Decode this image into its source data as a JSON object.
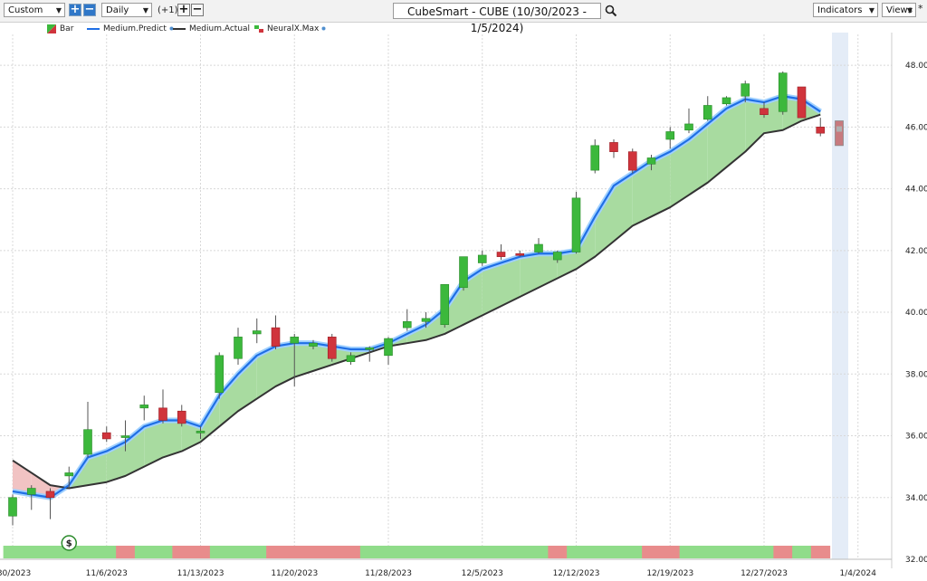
{
  "toolbar": {
    "period_select": "Custom",
    "interval_select": "Daily",
    "offset_label": "(+1)",
    "chart_title": "CubeSmart - CUBE (10/30/2023 - 1/5/2024)",
    "indicators_label": "Indicators",
    "views_label": "Views",
    "star_label": "*"
  },
  "legend": {
    "bar": "Bar",
    "predict": "Medium.Predict",
    "actual": "Medium.Actual",
    "neuralx": "NeuralX.Max"
  },
  "colors": {
    "up": "#3cb83c",
    "down": "#d0343c",
    "predict": "#1f6fe5",
    "actual": "#333333",
    "fill_up": "#a8dba0",
    "fill_down": "#f1c3c3",
    "band_green": "#90dc8a",
    "band_red": "#e88c8c"
  },
  "chart_data": {
    "type": "candlestick",
    "ylim": [
      32,
      49
    ],
    "yticks": [
      "48.00",
      "46.00",
      "44.00",
      "42.00",
      "40.00",
      "38.00",
      "36.00",
      "34.00",
      "32.00"
    ],
    "xticks": [
      {
        "index": 0,
        "label": "/30/2023"
      },
      {
        "index": 5,
        "label": "11/6/2023"
      },
      {
        "index": 10,
        "label": "11/13/2023"
      },
      {
        "index": 15,
        "label": "11/20/2023"
      },
      {
        "index": 20,
        "label": "11/28/2023"
      },
      {
        "index": 25,
        "label": "12/5/2023"
      },
      {
        "index": 30,
        "label": "12/12/2023"
      },
      {
        "index": 35,
        "label": "12/19/2023"
      },
      {
        "index": 40,
        "label": "12/27/2023"
      },
      {
        "index": 45,
        "label": "1/4/2024"
      }
    ],
    "grid": true,
    "candles": [
      {
        "o": 33.4,
        "h": 34.1,
        "l": 33.1,
        "c": 34.0
      },
      {
        "o": 34.1,
        "h": 34.4,
        "l": 33.6,
        "c": 34.3
      },
      {
        "o": 34.2,
        "h": 34.3,
        "l": 33.3,
        "c": 34.0
      },
      {
        "o": 34.7,
        "h": 35.0,
        "l": 34.3,
        "c": 34.8
      },
      {
        "o": 35.4,
        "h": 37.1,
        "l": 35.3,
        "c": 36.2
      },
      {
        "o": 36.1,
        "h": 36.3,
        "l": 35.8,
        "c": 35.9
      },
      {
        "o": 35.95,
        "h": 36.5,
        "l": 35.5,
        "c": 36.0
      },
      {
        "o": 36.9,
        "h": 37.3,
        "l": 36.5,
        "c": 37.0
      },
      {
        "o": 36.9,
        "h": 37.5,
        "l": 36.4,
        "c": 36.5
      },
      {
        "o": 36.8,
        "h": 37.0,
        "l": 36.3,
        "c": 36.4
      },
      {
        "o": 36.1,
        "h": 36.3,
        "l": 35.9,
        "c": 36.15
      },
      {
        "o": 37.4,
        "h": 38.7,
        "l": 37.2,
        "c": 38.6
      },
      {
        "o": 38.5,
        "h": 39.5,
        "l": 38.3,
        "c": 39.2
      },
      {
        "o": 39.3,
        "h": 39.8,
        "l": 39.0,
        "c": 39.4
      },
      {
        "o": 39.5,
        "h": 39.9,
        "l": 38.8,
        "c": 38.9
      },
      {
        "o": 39.0,
        "h": 39.3,
        "l": 37.6,
        "c": 39.2
      },
      {
        "o": 38.9,
        "h": 39.1,
        "l": 38.8,
        "c": 39.0
      },
      {
        "o": 39.2,
        "h": 39.3,
        "l": 38.4,
        "c": 38.5
      },
      {
        "o": 38.4,
        "h": 38.7,
        "l": 38.3,
        "c": 38.6
      },
      {
        "o": 38.8,
        "h": 38.9,
        "l": 38.4,
        "c": 38.85
      },
      {
        "o": 38.6,
        "h": 39.2,
        "l": 38.3,
        "c": 39.15
      },
      {
        "o": 39.5,
        "h": 40.1,
        "l": 39.4,
        "c": 39.7
      },
      {
        "o": 39.7,
        "h": 40.0,
        "l": 39.5,
        "c": 39.8
      },
      {
        "o": 39.6,
        "h": 40.9,
        "l": 39.5,
        "c": 40.9
      },
      {
        "o": 40.8,
        "h": 41.8,
        "l": 40.7,
        "c": 41.8
      },
      {
        "o": 41.6,
        "h": 42.0,
        "l": 41.5,
        "c": 41.85
      },
      {
        "o": 41.95,
        "h": 42.2,
        "l": 41.7,
        "c": 41.8
      },
      {
        "o": 41.9,
        "h": 42.0,
        "l": 41.8,
        "c": 41.85
      },
      {
        "o": 41.95,
        "h": 42.4,
        "l": 41.9,
        "c": 42.2
      },
      {
        "o": 41.7,
        "h": 42.0,
        "l": 41.6,
        "c": 41.95
      },
      {
        "o": 41.95,
        "h": 43.9,
        "l": 41.9,
        "c": 43.7
      },
      {
        "o": 44.6,
        "h": 45.6,
        "l": 44.5,
        "c": 45.4
      },
      {
        "o": 45.5,
        "h": 45.6,
        "l": 45.0,
        "c": 45.2
      },
      {
        "o": 45.2,
        "h": 45.3,
        "l": 44.5,
        "c": 44.6
      },
      {
        "o": 44.8,
        "h": 45.1,
        "l": 44.6,
        "c": 45.0
      },
      {
        "o": 45.6,
        "h": 46.0,
        "l": 45.3,
        "c": 45.85
      },
      {
        "o": 45.9,
        "h": 46.6,
        "l": 45.8,
        "c": 46.1
      },
      {
        "o": 46.25,
        "h": 47.0,
        "l": 46.2,
        "c": 46.7
      },
      {
        "o": 46.75,
        "h": 47.0,
        "l": 46.7,
        "c": 46.95
      },
      {
        "o": 47.0,
        "h": 47.5,
        "l": 46.8,
        "c": 47.4
      },
      {
        "o": 46.6,
        "h": 46.8,
        "l": 46.3,
        "c": 46.4
      },
      {
        "o": 46.5,
        "h": 47.8,
        "l": 46.4,
        "c": 47.75
      },
      {
        "o": 47.3,
        "h": 47.3,
        "l": 46.3,
        "c": 46.3
      },
      {
        "o": 46.0,
        "h": 46.3,
        "l": 45.7,
        "c": 45.8
      }
    ],
    "forecast": {
      "index": 44,
      "o": 46.2,
      "h": 46.2,
      "l": 45.3,
      "c": 45.4
    },
    "predict": [
      34.2,
      34.1,
      34.0,
      34.4,
      35.3,
      35.5,
      35.8,
      36.3,
      36.5,
      36.5,
      36.3,
      37.3,
      38.0,
      38.6,
      38.9,
      39.0,
      39.0,
      38.9,
      38.8,
      38.8,
      39.0,
      39.3,
      39.6,
      40.1,
      41.0,
      41.4,
      41.6,
      41.8,
      41.9,
      41.9,
      42.0,
      43.1,
      44.1,
      44.5,
      44.9,
      45.2,
      45.6,
      46.1,
      46.6,
      46.9,
      46.8,
      47.0,
      46.9,
      46.5
    ],
    "actual": [
      35.2,
      34.8,
      34.4,
      34.3,
      34.4,
      34.5,
      34.7,
      35.0,
      35.3,
      35.5,
      35.8,
      36.3,
      36.8,
      37.2,
      37.6,
      37.9,
      38.1,
      38.3,
      38.5,
      38.7,
      38.9,
      39.0,
      39.1,
      39.3,
      39.6,
      39.9,
      40.2,
      40.5,
      40.8,
      41.1,
      41.4,
      41.8,
      42.3,
      42.8,
      43.1,
      43.4,
      43.8,
      44.2,
      44.7,
      45.2,
      45.8,
      45.9,
      46.2,
      46.4
    ],
    "bottom_band": [
      "g",
      "g",
      "g",
      "g",
      "g",
      "g",
      "r",
      "g",
      "g",
      "r",
      "r",
      "g",
      "g",
      "g",
      "r",
      "r",
      "r",
      "r",
      "r",
      "g",
      "g",
      "g",
      "g",
      "g",
      "g",
      "g",
      "g",
      "g",
      "g",
      "r",
      "g",
      "g",
      "g",
      "g",
      "r",
      "r",
      "g",
      "g",
      "g",
      "g",
      "g",
      "r",
      "g",
      "r"
    ]
  }
}
